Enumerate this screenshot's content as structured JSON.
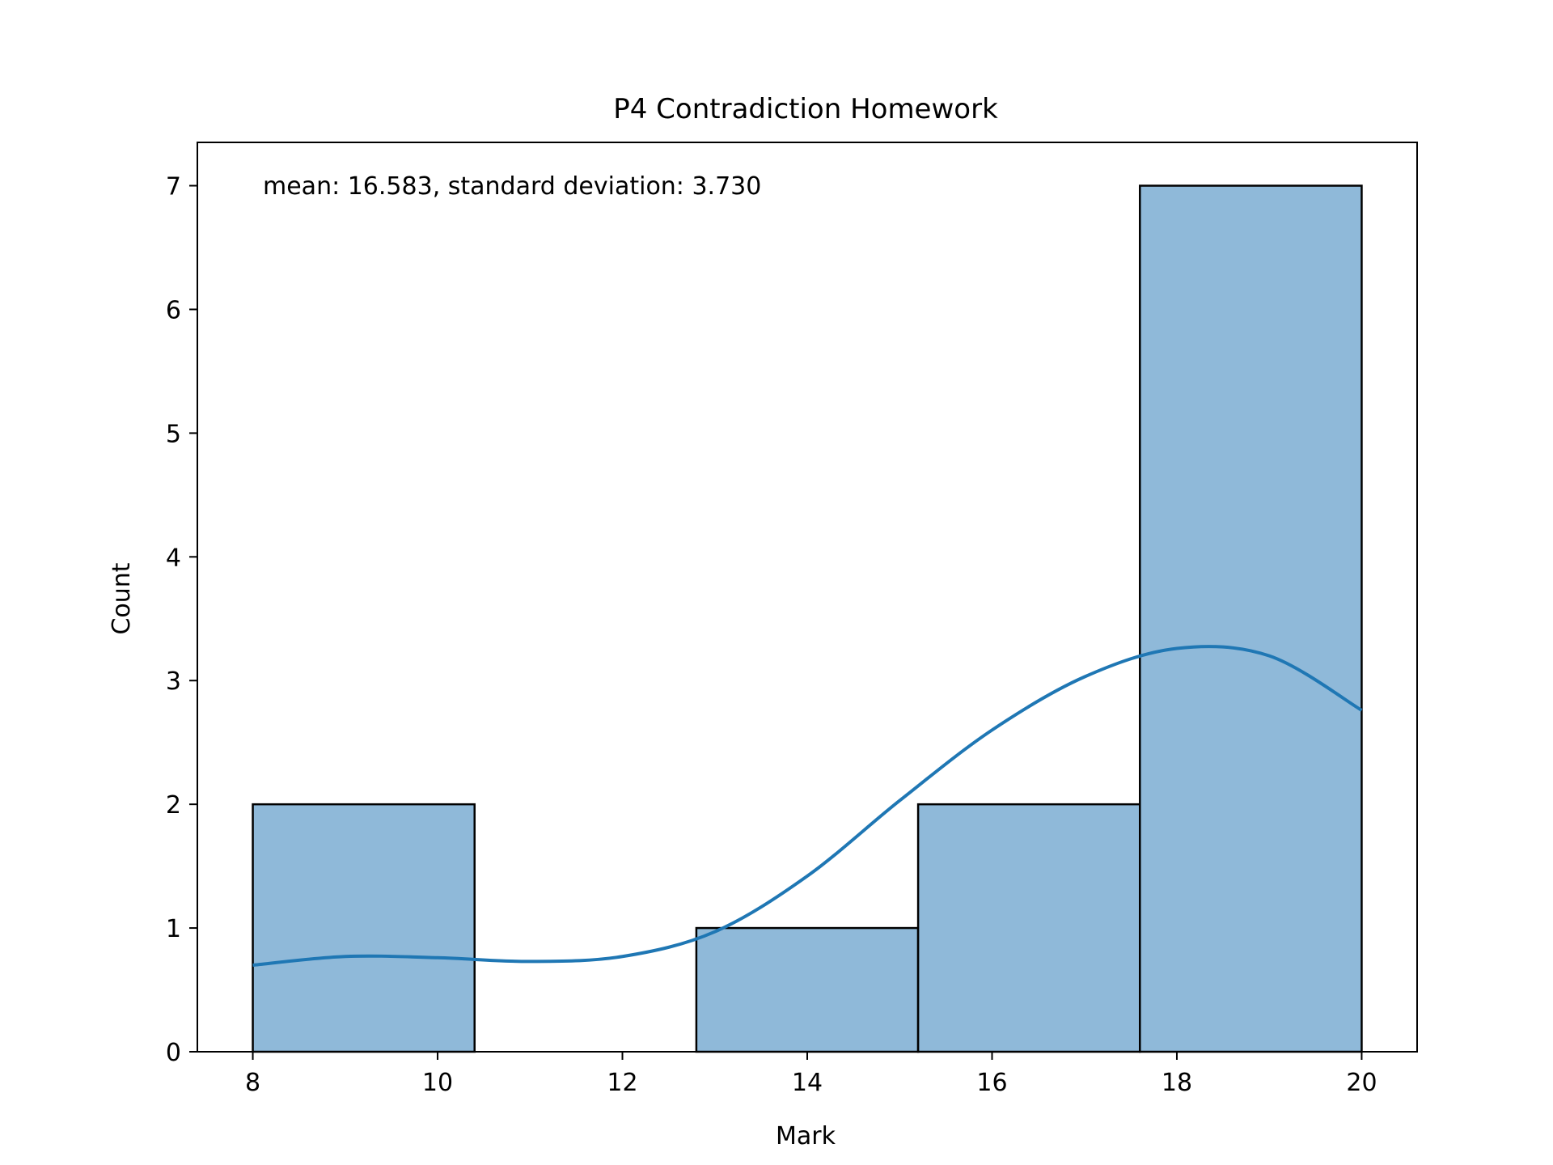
{
  "chart_data": {
    "type": "bar",
    "title": "P4 Contradiction Homework",
    "xlabel": "Mark",
    "ylabel": "Count",
    "annotation": "mean: 16.583, standard deviation: 3.730",
    "bins": [
      {
        "start": 8.0,
        "end": 10.4,
        "count": 2
      },
      {
        "start": 10.4,
        "end": 12.8,
        "count": 0
      },
      {
        "start": 12.8,
        "end": 15.2,
        "count": 1
      },
      {
        "start": 15.2,
        "end": 17.6,
        "count": 2
      },
      {
        "start": 17.6,
        "end": 20.0,
        "count": 7
      }
    ],
    "xlim": [
      7.4,
      20.6
    ],
    "ylim": [
      0,
      7.35
    ],
    "xticks": [
      "8",
      "10",
      "12",
      "14",
      "16",
      "18",
      "20"
    ],
    "yticks": [
      "0",
      "1",
      "2",
      "3",
      "4",
      "5",
      "6",
      "7"
    ],
    "kde": {
      "x": [
        8,
        9,
        10,
        11,
        12,
        13,
        14,
        15,
        16,
        17,
        18,
        19,
        20
      ],
      "y": [
        0.7,
        0.77,
        0.76,
        0.73,
        0.77,
        0.97,
        1.42,
        2.03,
        2.6,
        3.03,
        3.26,
        3.2,
        2.76
      ]
    },
    "bar_color": "#8fb9d9",
    "line_color": "#1f77b4",
    "grid": false,
    "legend": false
  }
}
